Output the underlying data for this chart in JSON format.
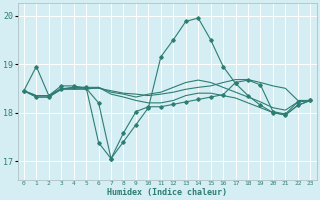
{
  "title": "",
  "xlabel": "Humidex (Indice chaleur)",
  "ylabel": "",
  "bg_color": "#d4eef4",
  "grid_color": "#ffffff",
  "line_color": "#2e7d72",
  "xlim": [
    -0.5,
    23.5
  ],
  "ylim": [
    16.6,
    20.25
  ],
  "yticks": [
    17,
    18,
    19,
    20
  ],
  "xticks": [
    0,
    1,
    2,
    3,
    4,
    5,
    6,
    7,
    8,
    9,
    10,
    11,
    12,
    13,
    14,
    15,
    16,
    17,
    18,
    19,
    20,
    21,
    22,
    23
  ],
  "lines": [
    {
      "x": [
        0,
        1,
        2,
        3,
        4,
        5,
        6,
        7,
        8,
        9,
        10,
        11,
        12,
        13,
        14,
        15,
        16,
        17,
        18,
        19,
        20,
        21,
        22,
        23
      ],
      "y": [
        18.45,
        18.95,
        18.35,
        18.55,
        18.55,
        18.5,
        18.2,
        17.05,
        17.4,
        17.75,
        18.1,
        19.15,
        19.5,
        19.88,
        19.95,
        19.5,
        18.95,
        18.6,
        18.35,
        18.15,
        18.0,
        17.95,
        18.15,
        18.25
      ],
      "marker": true
    },
    {
      "x": [
        0,
        1,
        2,
        3,
        4,
        5,
        6,
        7,
        8,
        9,
        10,
        11,
        12,
        13,
        14,
        15,
        16,
        17,
        18,
        19,
        20,
        21,
        22,
        23
      ],
      "y": [
        18.45,
        18.35,
        18.35,
        18.5,
        18.5,
        18.5,
        18.5,
        18.45,
        18.4,
        18.38,
        18.35,
        18.38,
        18.42,
        18.48,
        18.52,
        18.55,
        18.62,
        18.68,
        18.68,
        18.62,
        18.55,
        18.5,
        18.25,
        18.25
      ],
      "marker": false
    },
    {
      "x": [
        0,
        1,
        2,
        3,
        4,
        5,
        6,
        7,
        8,
        9,
        10,
        11,
        12,
        13,
        14,
        15,
        16,
        17,
        18,
        19,
        20,
        21,
        22,
        23
      ],
      "y": [
        18.45,
        18.35,
        18.35,
        18.48,
        18.48,
        18.48,
        18.52,
        18.42,
        18.38,
        18.32,
        18.38,
        18.42,
        18.52,
        18.62,
        18.67,
        18.62,
        18.52,
        18.42,
        18.32,
        18.22,
        18.1,
        18.05,
        18.22,
        18.25
      ],
      "marker": false
    },
    {
      "x": [
        0,
        1,
        2,
        3,
        4,
        5,
        6,
        7,
        8,
        9,
        10,
        11,
        12,
        13,
        14,
        15,
        16,
        17,
        18,
        19,
        20,
        21,
        22,
        23
      ],
      "y": [
        18.45,
        18.32,
        18.32,
        18.48,
        18.52,
        18.52,
        18.52,
        18.38,
        18.32,
        18.25,
        18.2,
        18.2,
        18.25,
        18.35,
        18.4,
        18.4,
        18.35,
        18.3,
        18.2,
        18.1,
        18.0,
        17.95,
        18.15,
        18.25
      ],
      "marker": false
    },
    {
      "x": [
        0,
        1,
        2,
        3,
        4,
        5,
        6,
        7,
        8,
        9,
        10,
        11,
        12,
        13,
        14,
        15,
        16,
        17,
        18,
        19,
        20,
        21,
        22,
        23
      ],
      "y": [
        18.45,
        18.32,
        18.32,
        18.48,
        18.52,
        18.52,
        17.38,
        17.05,
        17.58,
        18.02,
        18.12,
        18.12,
        18.17,
        18.22,
        18.27,
        18.32,
        18.37,
        18.62,
        18.67,
        18.57,
        18.02,
        17.97,
        18.22,
        18.25
      ],
      "marker": true
    }
  ]
}
